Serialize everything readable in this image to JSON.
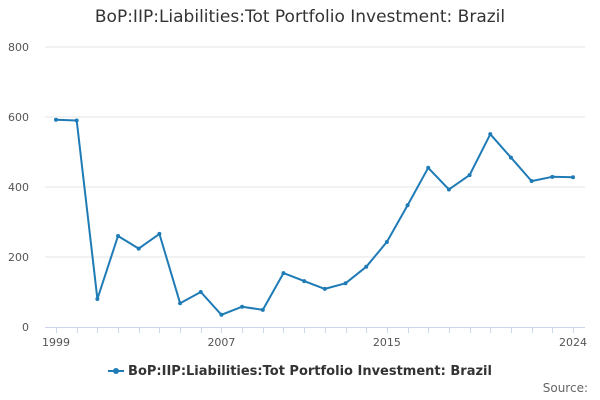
{
  "page": {
    "title": "BoP:IIP:Liabilities:Tot Portfolio Investment: Brazil"
  },
  "legend": {
    "label": "BoP:IIP:Liabilities:Tot Portfolio Investment: Brazil"
  },
  "credit": {
    "text": "Source:"
  },
  "colors": {
    "series": "#1f7bb6",
    "grid": "#e6e6e6",
    "axis": "#ccd6eb",
    "tick_text": "#555555"
  },
  "chart_data": {
    "type": "line",
    "title": "BoP:IIP:Liabilities:Tot Portfolio Investment: Brazil",
    "xlabel": "",
    "ylabel": "",
    "ylim": [
      0,
      800
    ],
    "yticks": [
      0,
      200,
      400,
      600,
      800
    ],
    "xticks": [
      1999,
      2007,
      2015,
      2024
    ],
    "grid": true,
    "legend_position": "bottom-center",
    "series": [
      {
        "name": "BoP:IIP:Liabilities:Tot Portfolio Investment: Brazil",
        "x": [
          1999,
          2000,
          2001,
          2002,
          2003,
          2004,
          2005,
          2006,
          2007,
          2008,
          2009,
          2010,
          2011,
          2012,
          2013,
          2014,
          2015,
          2016,
          2017,
          2018,
          2019,
          2020,
          2021,
          2022,
          2023,
          2024
        ],
        "values": [
          592,
          590,
          80,
          260,
          224,
          266,
          68,
          100,
          35,
          58,
          49,
          154,
          131,
          109,
          125,
          172,
          243,
          348,
          455,
          393,
          434,
          551,
          484,
          417,
          429,
          428
        ]
      }
    ]
  }
}
